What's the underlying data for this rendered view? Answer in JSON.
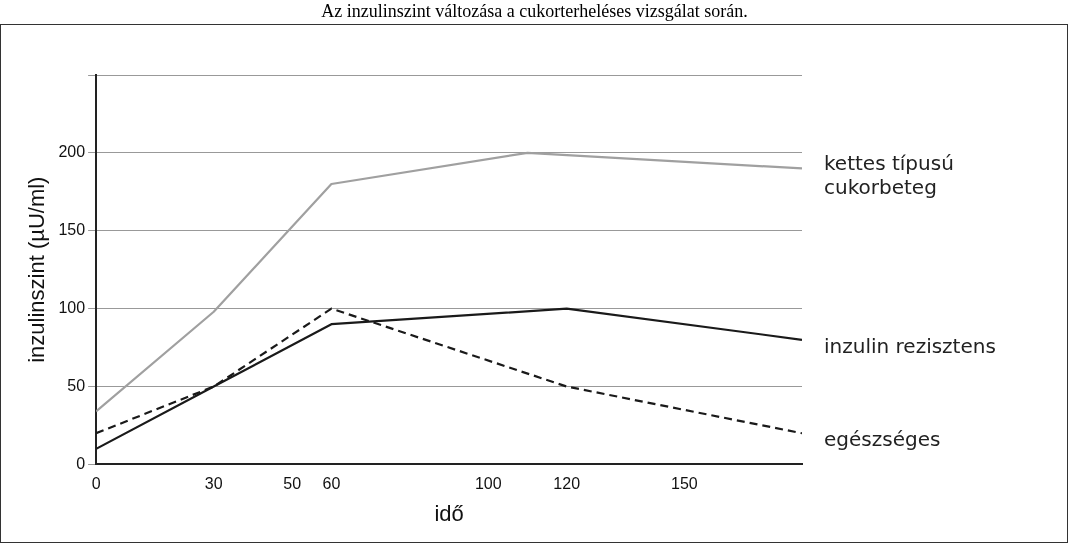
{
  "chart_data": {
    "type": "line",
    "title": "Az inzulinszint változása a cukorterheléses vizsgálat során.",
    "xlabel": "idő",
    "ylabel": "inzulinszint (µU/ml)",
    "xlim": [
      0,
      180
    ],
    "xticks": [
      0,
      30,
      50,
      60,
      100,
      120,
      150
    ],
    "ylim": [
      0,
      250
    ],
    "yticks": [
      0,
      50,
      100,
      150,
      200,
      {
        "value": 250,
        "label": null
      }
    ],
    "grid": "y",
    "legend": false,
    "marker": "none",
    "series": [
      {
        "name": "kettes típusú cukorbeteg",
        "color": "#a0a0a0",
        "x": [
          0,
          30,
          60,
          110,
          180
        ],
        "values": [
          34,
          98,
          180,
          200,
          190
        ],
        "line_style": "solid"
      },
      {
        "name": "inzulin rezisztens",
        "color": "#1a1a1a",
        "x": [
          0,
          30,
          60,
          120,
          180
        ],
        "values": [
          10,
          50,
          90,
          100,
          80
        ],
        "line_style": "solid"
      },
      {
        "name": "egészséges",
        "color": "#1a1a1a",
        "x": [
          0,
          30,
          60,
          120,
          180
        ],
        "values": [
          20,
          50,
          100,
          50,
          20
        ],
        "line_style": "dashed"
      }
    ]
  }
}
